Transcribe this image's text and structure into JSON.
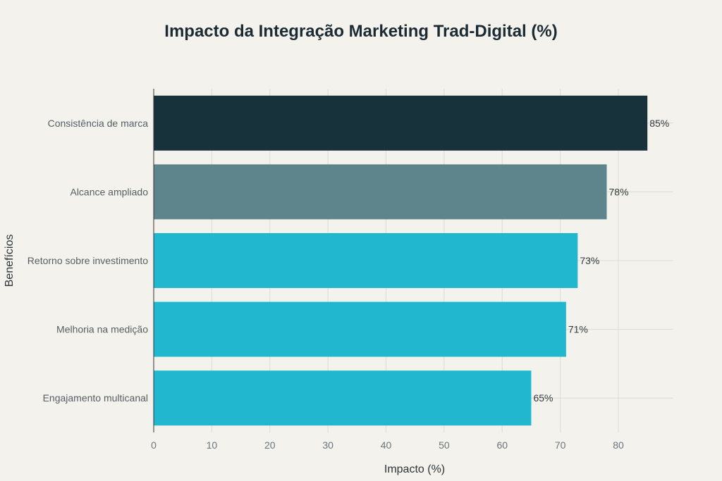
{
  "chart_data": {
    "type": "bar",
    "orientation": "horizontal",
    "title": "Impacto da Integração Marketing Trad-Digital (%)",
    "xlabel": "Impacto (%)",
    "ylabel": "Benefícios",
    "categories": [
      "Consistência de marca",
      "Alcance ampliado",
      "Retorno sobre investimento",
      "Melhoria na medição",
      "Engajamento multicanal"
    ],
    "values": [
      85,
      78,
      73,
      71,
      65
    ],
    "value_labels": [
      "85%",
      "78%",
      "73%",
      "71%",
      "65%"
    ],
    "colors": [
      "#17323b",
      "#5e858b",
      "#21b8cf",
      "#21b8cf",
      "#21b8cf"
    ],
    "xlim": [
      0,
      90
    ],
    "xticks": [
      0,
      10,
      20,
      30,
      40,
      50,
      60,
      70,
      80
    ],
    "grid": true,
    "legend": "none"
  }
}
